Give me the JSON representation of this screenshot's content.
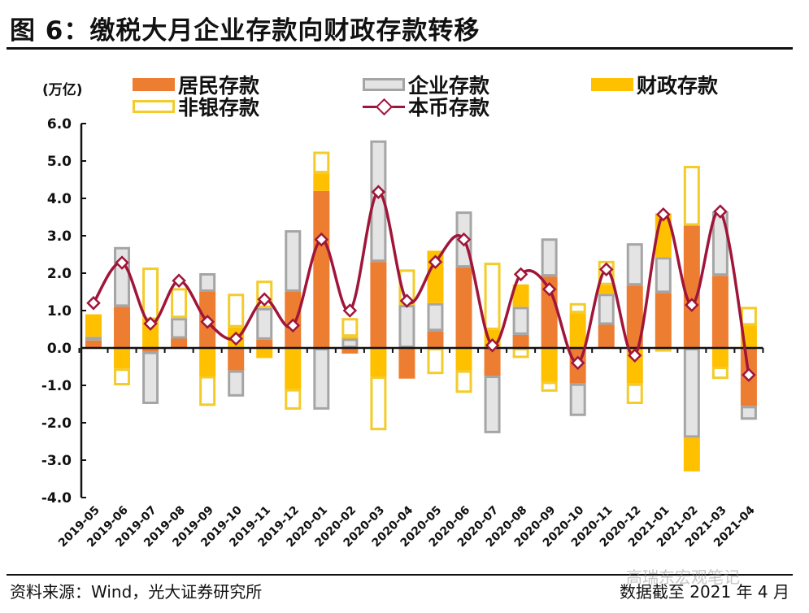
{
  "header": {
    "title": "图 6：缴税大月企业存款向财政存款转移"
  },
  "footer": {
    "source": "资料来源：Wind，光大证券研究所",
    "date_note": "数据截至 2021 年 4 月",
    "watermark": "高瑞东宏观笔记"
  },
  "chart_data": {
    "type": "bar",
    "subtype": "stacked-bar-with-line",
    "title": "图 6：缴税大月企业存款向财政存款转移",
    "ylabel": "(万亿)",
    "xlabel": "",
    "ylim": [
      -4.0,
      6.0
    ],
    "yticks": [
      "6.0",
      "5.0",
      "4.0",
      "3.0",
      "2.0",
      "1.0",
      "0.0",
      "-1.0",
      "-2.0",
      "-3.0",
      "-4.0"
    ],
    "ytick_values": [
      6,
      5,
      4,
      3,
      2,
      1,
      0,
      -1,
      -2,
      -3,
      -4
    ],
    "grid": false,
    "legend_position": "top",
    "categories": [
      "2019-05",
      "2019-06",
      "2019-07",
      "2019-08",
      "2019-09",
      "2019-10",
      "2019-11",
      "2019-12",
      "2020-01",
      "2020-02",
      "2020-03",
      "2020-04",
      "2020-05",
      "2020-06",
      "2020-07",
      "2020-08",
      "2020-09",
      "2020-10",
      "2020-11",
      "2020-12",
      "2021-01",
      "2021-02",
      "2021-03",
      "2021-04"
    ],
    "series": [
      {
        "name": "居民存款",
        "kind": "bar",
        "color": "#ED7D31",
        "values": [
          0.2,
          1.1,
          -0.1,
          0.25,
          1.5,
          -0.6,
          0.22,
          1.5,
          4.2,
          -0.15,
          2.3,
          -0.82,
          0.45,
          2.15,
          -0.74,
          0.35,
          1.91,
          -0.95,
          0.62,
          1.67,
          1.47,
          3.27,
          1.93,
          -1.55
        ]
      },
      {
        "name": "企业存款",
        "kind": "bar",
        "color": "#E4E4E4",
        "border": "#A5A5A5",
        "values": [
          0.1,
          1.6,
          -1.4,
          0.55,
          0.5,
          -0.7,
          0.85,
          1.65,
          -1.65,
          0.25,
          3.25,
          1.15,
          0.75,
          1.5,
          -1.54,
          0.75,
          1.02,
          -0.87,
          0.83,
          1.13,
          0.96,
          -2.4,
          1.72,
          -0.37
        ]
      },
      {
        "name": "财政存款",
        "kind": "bar",
        "color": "#FFC000",
        "values": [
          0.6,
          -0.55,
          0.75,
          0.0,
          -0.75,
          0.55,
          -0.27,
          -1.1,
          0.47,
          0.05,
          -0.76,
          0.0,
          1.4,
          -0.6,
          0.48,
          0.6,
          -0.9,
          0.93,
          0.23,
          -0.95,
          1.17,
          -0.9,
          -0.5,
          0.6
        ]
      },
      {
        "name": "非银存款",
        "kind": "bar",
        "color": "#FFFFFF",
        "border": "#F3CB2A",
        "values": [
          0.0,
          -0.45,
          1.4,
          0.8,
          -0.8,
          0.9,
          0.73,
          -0.55,
          0.58,
          0.5,
          -1.44,
          0.95,
          -0.7,
          -0.6,
          1.8,
          -0.27,
          -0.27,
          0.27,
          0.65,
          -0.55,
          -0.1,
          1.6,
          -0.33,
          0.5
        ]
      },
      {
        "name": "本币存款",
        "kind": "line",
        "color": "#A0163A",
        "marker": "diamond",
        "values": [
          1.2,
          2.28,
          0.65,
          1.8,
          0.7,
          0.25,
          1.3,
          0.6,
          2.9,
          1.0,
          4.17,
          1.26,
          2.3,
          2.9,
          0.07,
          1.97,
          1.57,
          -0.4,
          2.1,
          -0.2,
          3.57,
          1.15,
          3.65,
          -0.72
        ]
      }
    ],
    "legend": [
      {
        "label": "居民存款",
        "swatch": "sw-res"
      },
      {
        "label": "企业存款",
        "swatch": "sw-ent"
      },
      {
        "label": "财政存款",
        "swatch": "sw-fis"
      },
      {
        "label": "非银存款",
        "swatch": "sw-nb"
      },
      {
        "label": "本币存款",
        "swatch": "sw-line"
      }
    ]
  }
}
